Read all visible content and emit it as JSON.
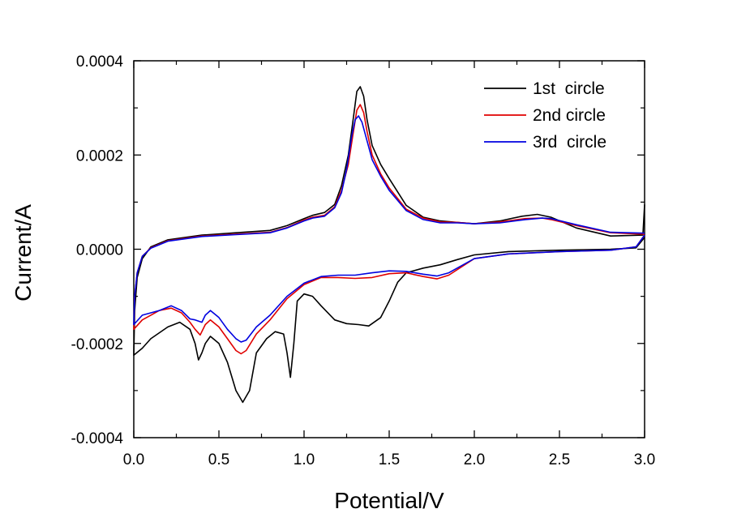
{
  "chart_data": {
    "type": "line",
    "title": "",
    "xlabel": "Potential/V",
    "ylabel": "Current/A",
    "xlim": [
      0.0,
      3.0
    ],
    "ylim": [
      -0.0004,
      0.0004
    ],
    "xticks": [
      0.0,
      0.5,
      1.0,
      1.5,
      2.0,
      2.5,
      3.0
    ],
    "xtick_labels": [
      "0.0",
      "0.5",
      "1.0",
      "1.5",
      "2.0",
      "2.5",
      "3.0"
    ],
    "yticks": [
      0.0004,
      0.0002,
      0.0,
      -0.0002,
      -0.0004
    ],
    "ytick_labels": [
      "0.0004",
      "0.0002",
      "0.0000",
      "-0.0002",
      "-0.0004"
    ],
    "grid": false,
    "legend_position": "top-right",
    "series": [
      {
        "name": "1st  circle",
        "color": "#000000",
        "points": [
          [
            3.0,
            9.5e-05
          ],
          [
            2.99,
            3e-05
          ],
          [
            2.8,
            2.8e-05
          ],
          [
            2.6,
            4.5e-05
          ],
          [
            2.45,
            6.8e-05
          ],
          [
            2.37,
            7.4e-05
          ],
          [
            2.28,
            7e-05
          ],
          [
            2.15,
            6e-05
          ],
          [
            2.0,
            5.4e-05
          ],
          [
            1.9,
            5.7e-05
          ],
          [
            1.8,
            6e-05
          ],
          [
            1.7,
            6.8e-05
          ],
          [
            1.6,
            9.3e-05
          ],
          [
            1.5,
            0.00015
          ],
          [
            1.45,
            0.00018
          ],
          [
            1.4,
            0.00022
          ],
          [
            1.37,
            0.000275
          ],
          [
            1.35,
            0.000325
          ],
          [
            1.33,
            0.000345
          ],
          [
            1.31,
            0.000335
          ],
          [
            1.29,
            0.00028
          ],
          [
            1.26,
            0.0002
          ],
          [
            1.22,
            0.000135
          ],
          [
            1.18,
            9.5e-05
          ],
          [
            1.12,
            7.8e-05
          ],
          [
            1.05,
            7.2e-05
          ],
          [
            1.0,
            6.5e-05
          ],
          [
            0.9,
            5e-05
          ],
          [
            0.8,
            4e-05
          ],
          [
            0.6,
            3.5e-05
          ],
          [
            0.4,
            3e-05
          ],
          [
            0.2,
            2e-05
          ],
          [
            0.1,
            5e-06
          ],
          [
            0.05,
            -2e-05
          ],
          [
            0.02,
            -6e-05
          ],
          [
            0.005,
            -0.00013
          ],
          [
            0.0,
            -0.000225
          ],
          [
            0.05,
            -0.00021
          ],
          [
            0.1,
            -0.00019
          ],
          [
            0.2,
            -0.000165
          ],
          [
            0.27,
            -0.000155
          ],
          [
            0.33,
            -0.00017
          ],
          [
            0.36,
            -0.0002
          ],
          [
            0.38,
            -0.000235
          ],
          [
            0.4,
            -0.00022
          ],
          [
            0.42,
            -0.0002
          ],
          [
            0.45,
            -0.000185
          ],
          [
            0.5,
            -0.0002
          ],
          [
            0.55,
            -0.00024
          ],
          [
            0.6,
            -0.0003
          ],
          [
            0.64,
            -0.000325
          ],
          [
            0.68,
            -0.0003
          ],
          [
            0.72,
            -0.00022
          ],
          [
            0.78,
            -0.00019
          ],
          [
            0.83,
            -0.000175
          ],
          [
            0.88,
            -0.00018
          ],
          [
            0.9,
            -0.00022
          ],
          [
            0.92,
            -0.000272
          ],
          [
            0.94,
            -0.0002
          ],
          [
            0.96,
            -0.00011
          ],
          [
            1.0,
            -9.5e-05
          ],
          [
            1.05,
            -0.0001
          ],
          [
            1.1,
            -0.00012
          ],
          [
            1.18,
            -0.00015
          ],
          [
            1.25,
            -0.000158
          ],
          [
            1.32,
            -0.00016
          ],
          [
            1.38,
            -0.000163
          ],
          [
            1.45,
            -0.000145
          ],
          [
            1.5,
            -0.00011
          ],
          [
            1.55,
            -7e-05
          ],
          [
            1.6,
            -5e-05
          ],
          [
            1.7,
            -4e-05
          ],
          [
            1.8,
            -3.3e-05
          ],
          [
            1.9,
            -2.2e-05
          ],
          [
            2.0,
            -1.2e-05
          ],
          [
            2.2,
            -5e-06
          ],
          [
            2.5,
            -2e-06
          ],
          [
            2.8,
            0.0
          ],
          [
            2.95,
            3e-06
          ],
          [
            3.0,
            2.5e-05
          ]
        ]
      },
      {
        "name": "2nd circle",
        "color": "#e00000",
        "points": [
          [
            3.0,
            3.2e-05
          ],
          [
            2.8,
            3.5e-05
          ],
          [
            2.6,
            5e-05
          ],
          [
            2.45,
            6.3e-05
          ],
          [
            2.4,
            6.6e-05
          ],
          [
            2.3,
            6.5e-05
          ],
          [
            2.15,
            5.8e-05
          ],
          [
            2.0,
            5.4e-05
          ],
          [
            1.9,
            5.7e-05
          ],
          [
            1.8,
            5.8e-05
          ],
          [
            1.7,
            6.6e-05
          ],
          [
            1.6,
            8.5e-05
          ],
          [
            1.5,
            0.00013
          ],
          [
            1.45,
            0.00016
          ],
          [
            1.4,
            0.0002
          ],
          [
            1.37,
            0.00025
          ],
          [
            1.35,
            0.00029
          ],
          [
            1.33,
            0.000307
          ],
          [
            1.31,
            0.000295
          ],
          [
            1.29,
            0.00025
          ],
          [
            1.26,
            0.00018
          ],
          [
            1.22,
            0.000125
          ],
          [
            1.18,
            9e-05
          ],
          [
            1.12,
            7.2e-05
          ],
          [
            1.05,
            6.8e-05
          ],
          [
            1.0,
            6.2e-05
          ],
          [
            0.9,
            4.6e-05
          ],
          [
            0.8,
            3.6e-05
          ],
          [
            0.6,
            3.2e-05
          ],
          [
            0.4,
            2.8e-05
          ],
          [
            0.2,
            1.8e-05
          ],
          [
            0.1,
            3e-06
          ],
          [
            0.05,
            -1.5e-05
          ],
          [
            0.02,
            -5e-05
          ],
          [
            0.005,
            -0.0001
          ],
          [
            0.0,
            -0.00017
          ],
          [
            0.05,
            -0.00015
          ],
          [
            0.1,
            -0.00014
          ],
          [
            0.15,
            -0.00013
          ],
          [
            0.22,
            -0.000125
          ],
          [
            0.28,
            -0.000135
          ],
          [
            0.33,
            -0.000155
          ],
          [
            0.36,
            -0.00017
          ],
          [
            0.39,
            -0.000182
          ],
          [
            0.42,
            -0.00016
          ],
          [
            0.45,
            -0.00015
          ],
          [
            0.5,
            -0.000165
          ],
          [
            0.55,
            -0.00019
          ],
          [
            0.6,
            -0.000215
          ],
          [
            0.63,
            -0.000222
          ],
          [
            0.66,
            -0.000215
          ],
          [
            0.72,
            -0.00018
          ],
          [
            0.8,
            -0.00015
          ],
          [
            0.9,
            -0.000105
          ],
          [
            1.0,
            -7.5e-05
          ],
          [
            1.1,
            -6e-05
          ],
          [
            1.2,
            -6e-05
          ],
          [
            1.3,
            -6.2e-05
          ],
          [
            1.4,
            -6e-05
          ],
          [
            1.5,
            -5.2e-05
          ],
          [
            1.6,
            -5e-05
          ],
          [
            1.7,
            -5.8e-05
          ],
          [
            1.78,
            -6.3e-05
          ],
          [
            1.85,
            -5.5e-05
          ],
          [
            2.0,
            -2e-05
          ],
          [
            2.2,
            -1e-05
          ],
          [
            2.5,
            -5e-06
          ],
          [
            2.8,
            -2e-06
          ],
          [
            2.95,
            5e-06
          ],
          [
            3.0,
            3e-05
          ]
        ]
      },
      {
        "name": "3rd  circle",
        "color": "#0000e0",
        "points": [
          [
            3.0,
            3.4e-05
          ],
          [
            2.8,
            3.6e-05
          ],
          [
            2.6,
            5.2e-05
          ],
          [
            2.45,
            6.5e-05
          ],
          [
            2.4,
            6.6e-05
          ],
          [
            2.3,
            6.3e-05
          ],
          [
            2.15,
            5.6e-05
          ],
          [
            2.0,
            5.4e-05
          ],
          [
            1.9,
            5.6e-05
          ],
          [
            1.8,
            5.6e-05
          ],
          [
            1.7,
            6.3e-05
          ],
          [
            1.6,
            8.2e-05
          ],
          [
            1.5,
            0.000125
          ],
          [
            1.45,
            0.000155
          ],
          [
            1.4,
            0.00019
          ],
          [
            1.37,
            0.00023
          ],
          [
            1.34,
            0.00027
          ],
          [
            1.32,
            0.000283
          ],
          [
            1.3,
            0.000275
          ],
          [
            1.28,
            0.00024
          ],
          [
            1.25,
            0.00017
          ],
          [
            1.22,
            0.00012
          ],
          [
            1.18,
            8.8e-05
          ],
          [
            1.12,
            7e-05
          ],
          [
            1.05,
            6.6e-05
          ],
          [
            1.0,
            6e-05
          ],
          [
            0.9,
            4.5e-05
          ],
          [
            0.8,
            3.5e-05
          ],
          [
            0.6,
            3.1e-05
          ],
          [
            0.4,
            2.7e-05
          ],
          [
            0.2,
            1.7e-05
          ],
          [
            0.1,
            2e-06
          ],
          [
            0.05,
            -1.5e-05
          ],
          [
            0.02,
            -5e-05
          ],
          [
            0.005,
            -0.0001
          ],
          [
            0.0,
            -0.00016
          ],
          [
            0.05,
            -0.00014
          ],
          [
            0.1,
            -0.000135
          ],
          [
            0.15,
            -0.00013
          ],
          [
            0.22,
            -0.00012
          ],
          [
            0.28,
            -0.00013
          ],
          [
            0.33,
            -0.000148
          ],
          [
            0.36,
            -0.00015
          ],
          [
            0.4,
            -0.000155
          ],
          [
            0.42,
            -0.00014
          ],
          [
            0.45,
            -0.00013
          ],
          [
            0.5,
            -0.000145
          ],
          [
            0.55,
            -0.00017
          ],
          [
            0.6,
            -0.00019
          ],
          [
            0.63,
            -0.000197
          ],
          [
            0.66,
            -0.000193
          ],
          [
            0.72,
            -0.000165
          ],
          [
            0.8,
            -0.00014
          ],
          [
            0.9,
            -0.0001
          ],
          [
            1.0,
            -7.2e-05
          ],
          [
            1.1,
            -5.8e-05
          ],
          [
            1.2,
            -5.5e-05
          ],
          [
            1.3,
            -5.5e-05
          ],
          [
            1.4,
            -5e-05
          ],
          [
            1.5,
            -4.6e-05
          ],
          [
            1.6,
            -4.7e-05
          ],
          [
            1.7,
            -5.3e-05
          ],
          [
            1.78,
            -5.7e-05
          ],
          [
            1.85,
            -5e-05
          ],
          [
            2.0,
            -2e-05
          ],
          [
            2.2,
            -1e-05
          ],
          [
            2.5,
            -5e-06
          ],
          [
            2.8,
            -2e-06
          ],
          [
            2.95,
            5e-06
          ],
          [
            3.0,
            3e-05
          ]
        ]
      }
    ]
  }
}
